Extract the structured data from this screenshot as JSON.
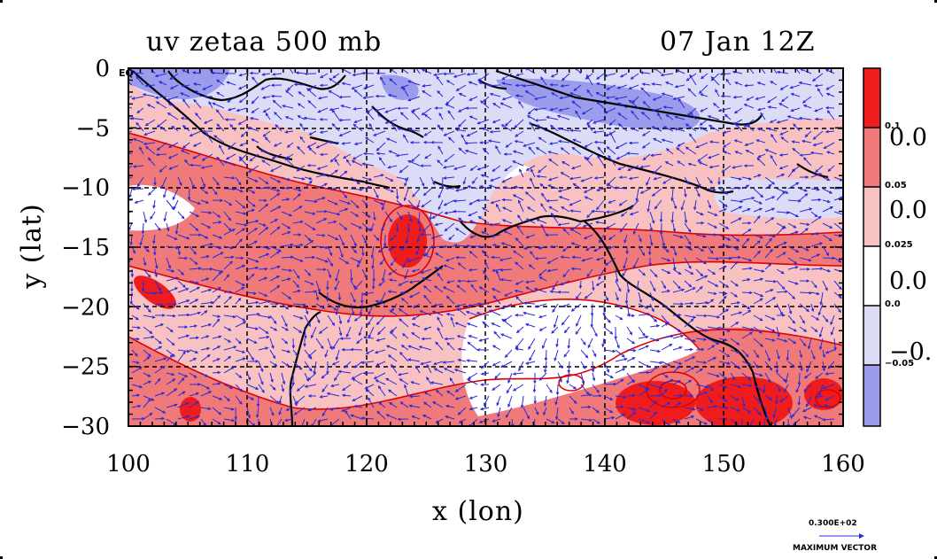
{
  "map": {
    "title_left": "uv zetaa 500 mb",
    "title_right": "07 Jan 12Z",
    "xlabel": "x (lon)",
    "ylabel": "y (lat)",
    "corner_label": "EQ",
    "x_ticks": [
      "100",
      "110",
      "120",
      "130",
      "140",
      "150",
      "160"
    ],
    "y_ticks": [
      "0",
      "−5",
      "−10",
      "−15",
      "−20",
      "−25",
      "−30"
    ],
    "x_range": [
      100,
      160
    ],
    "y_range": [
      -30,
      0
    ],
    "grid": "dashed",
    "contour_color": "#e00000",
    "coast_color": "#000000",
    "vector_color": "#2a2ad8"
  },
  "colorbar": {
    "levels": [
      "0.1",
      "0.05",
      "0.025",
      "0.0",
      "−0.05"
    ],
    "side_labels": [
      "0.0",
      "0.0",
      "0.0",
      "−0."
    ],
    "colors": [
      "#ee1c1c",
      "#f07a7a",
      "#f8c2c2",
      "#ffffff",
      "#dcdcf6",
      "#9c9cec"
    ]
  },
  "max_vector": {
    "value": "0.300E+02",
    "label": "MAXIMUM VECTOR"
  }
}
